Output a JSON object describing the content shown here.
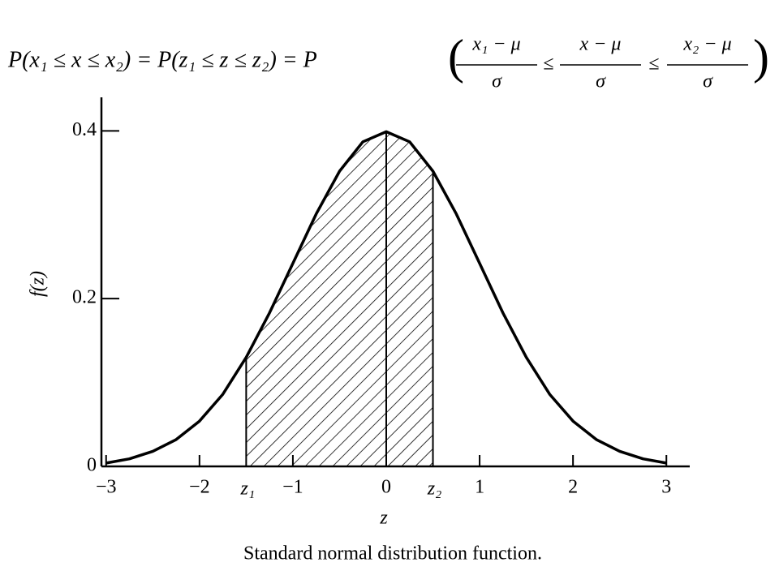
{
  "chart_data": {
    "type": "line",
    "formula": {
      "lhs": "P(x₁ ≤ x ≤ x₂) = P(z₁ ≤ z ≤ z₂) = P",
      "relation": "≤",
      "fractions": [
        {
          "num": "x₁ − μ",
          "den": "σ"
        },
        {
          "num": "x − μ",
          "den": "σ"
        },
        {
          "num": "x₂ − μ",
          "den": "σ"
        }
      ]
    },
    "caption": "Standard normal distribution function.",
    "x_label": "z",
    "y_label": "f(z)",
    "color": "#000000",
    "x": [
      -3,
      -2.75,
      -2.5,
      -2.25,
      -2,
      -1.75,
      -1.5,
      -1.25,
      -1,
      -0.75,
      -0.5,
      -0.25,
      0,
      0.25,
      0.5,
      0.75,
      1,
      1.25,
      1.5,
      1.75,
      2,
      2.25,
      2.5,
      2.75,
      3
    ],
    "values": [
      0.004,
      0.009,
      0.018,
      0.032,
      0.054,
      0.086,
      0.13,
      0.183,
      0.242,
      0.301,
      0.352,
      0.387,
      0.399,
      0.387,
      0.352,
      0.301,
      0.242,
      0.183,
      0.13,
      0.086,
      0.054,
      0.032,
      0.018,
      0.009,
      0.004
    ],
    "shaded_region": {
      "from": {
        "value": -1.5,
        "label": "z₁"
      },
      "to": {
        "value": 0.5,
        "label": "z₂"
      }
    },
    "xlim": [
      -3.05,
      3.25
    ],
    "ylim": [
      0,
      0.44
    ],
    "xticks": [
      {
        "value": -3,
        "label": "−3"
      },
      {
        "value": -2,
        "label": "−2"
      },
      {
        "value": -1,
        "label": "−1"
      },
      0,
      1,
      2,
      3
    ],
    "yticks": [
      0,
      0.2,
      0.4
    ]
  }
}
